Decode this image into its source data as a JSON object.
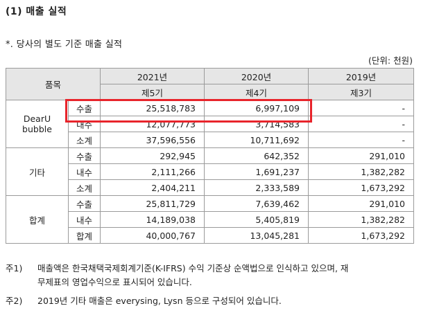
{
  "heading": "(1) 매출 실적",
  "subheading": "*. 당사의 별도 기준 매출 실적",
  "unit": "(단위: 천원)",
  "table": {
    "item_header": "품목",
    "years": [
      {
        "year": "2021년",
        "period": "제5기"
      },
      {
        "year": "2020년",
        "period": "제4기"
      },
      {
        "year": "2019년",
        "period": "제3기"
      }
    ],
    "groups": [
      {
        "name": "DearU bubble",
        "rows": [
          {
            "type": "수출",
            "values": [
              "25,518,783",
              "6,997,109",
              "-"
            ]
          },
          {
            "type": "내수",
            "values": [
              "12,077,773",
              "3,714,583",
              "-"
            ]
          },
          {
            "type": "소계",
            "values": [
              "37,596,556",
              "10,711,692",
              "-"
            ]
          }
        ]
      },
      {
        "name": "기타",
        "rows": [
          {
            "type": "수출",
            "values": [
              "292,945",
              "642,352",
              "291,010"
            ]
          },
          {
            "type": "내수",
            "values": [
              "2,111,266",
              "1,691,237",
              "1,382,282"
            ]
          },
          {
            "type": "소계",
            "values": [
              "2,404,211",
              "2,333,589",
              "1,673,292"
            ]
          }
        ]
      },
      {
        "name": "합계",
        "rows": [
          {
            "type": "수출",
            "values": [
              "25,811,729",
              "7,639,462",
              "291,010"
            ]
          },
          {
            "type": "내수",
            "values": [
              "14,189,038",
              "5,405,819",
              "1,382,282"
            ]
          },
          {
            "type": "합계",
            "values": [
              "40,000,767",
              "13,045,281",
              "1,673,292"
            ]
          }
        ]
      }
    ]
  },
  "highlight_color": "#e8242b",
  "notes": {
    "n1_label": "주1)",
    "n1_line1": "매출액은 한국채택국제회계기준(K-IFRS) 수익 기준상 순액법으로 인식하고 있으며, 재",
    "n1_line2": "무제표의 영업수익으로 표시되어 있습니다.",
    "n2_label": "주2)",
    "n2_text": "2019년 기타 매출은 everysing, Lysn 등으로 구성되어 있습니다."
  }
}
